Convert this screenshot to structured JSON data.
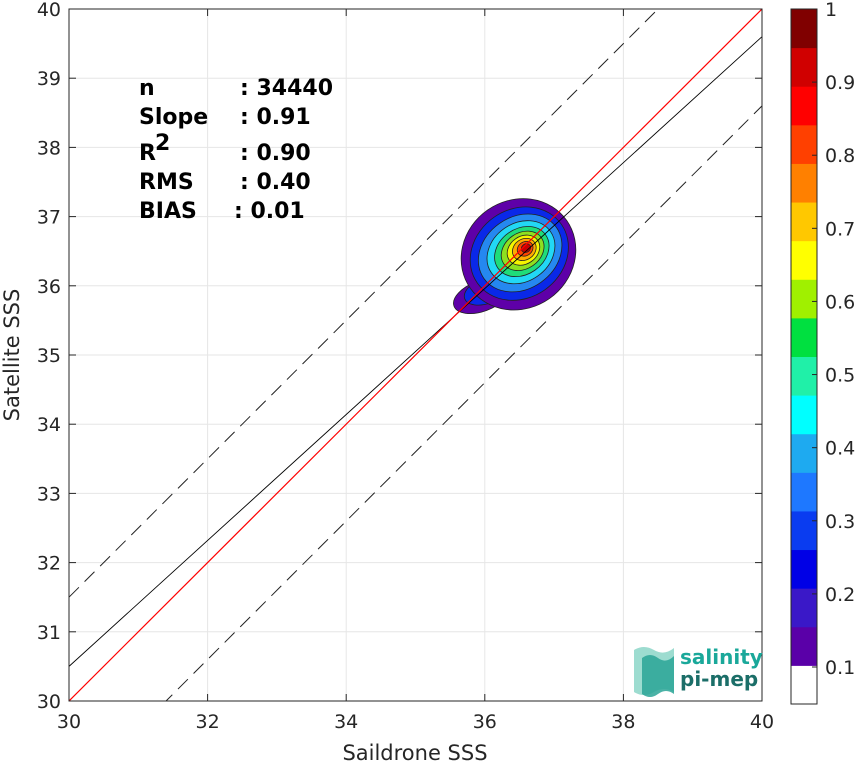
{
  "chart_data": {
    "type": "heatmap",
    "title": "",
    "xlabel": "Saildrone SSS",
    "ylabel": "Satellite SSS",
    "xlim": [
      30,
      40
    ],
    "ylim": [
      30,
      40
    ],
    "x_ticks": [
      "30",
      "32",
      "34",
      "36",
      "38",
      "40"
    ],
    "y_ticks": [
      "30",
      "31",
      "32",
      "33",
      "34",
      "35",
      "36",
      "37",
      "38",
      "39",
      "40"
    ],
    "grid": true,
    "stats": [
      {
        "label": "n",
        "value": ": 34440"
      },
      {
        "label": "Slope",
        "value": ": 0.91"
      },
      {
        "label": "R",
        "sup": "2",
        "value": ": 0.90"
      },
      {
        "label": "RMS",
        "value": ": 0.40"
      },
      {
        "label": "BIAS",
        "value": ": 0.01"
      }
    ],
    "reference_lines": {
      "identity": {
        "slope": 1,
        "intercept": 0,
        "color": "#ff0000"
      },
      "fit": {
        "slope": 0.91,
        "intercept": 3.2,
        "color": "#000000"
      },
      "upper_dashed": {
        "slope": 1,
        "intercept": 1.5
      },
      "lower_dashed": {
        "slope": 1,
        "intercept": -1.4
      }
    },
    "density_center": [
      36.6,
      36.55
    ],
    "density_levels": [
      {
        "level": 0.05,
        "color": "#5e00a8",
        "rx": 0.85,
        "ry": 0.78,
        "angle": -35
      },
      {
        "level": 0.15,
        "color": "#0a28e8",
        "rx": 0.74,
        "ry": 0.64,
        "angle": -35
      },
      {
        "level": 0.25,
        "color": "#2588f0",
        "rx": 0.64,
        "ry": 0.52,
        "angle": -35
      },
      {
        "level": 0.35,
        "color": "#22d8f5",
        "rx": 0.52,
        "ry": 0.42,
        "angle": -35
      },
      {
        "level": 0.45,
        "color": "#1fdc7a",
        "rx": 0.42,
        "ry": 0.33,
        "angle": -35
      },
      {
        "level": 0.55,
        "color": "#8ee020",
        "rx": 0.33,
        "ry": 0.26,
        "angle": -35
      },
      {
        "level": 0.65,
        "color": "#f5f500",
        "rx": 0.25,
        "ry": 0.2,
        "angle": -35
      },
      {
        "level": 0.75,
        "color": "#ffaa00",
        "rx": 0.18,
        "ry": 0.15,
        "angle": -35
      },
      {
        "level": 0.85,
        "color": "#ff4400",
        "rx": 0.12,
        "ry": 0.1,
        "angle": -35
      },
      {
        "level": 0.95,
        "color": "#c80000",
        "rx": 0.07,
        "ry": 0.06,
        "angle": -35
      }
    ],
    "colorbar": {
      "ticks": [
        "0.1",
        "0.2",
        "0.3",
        "0.4",
        "0.5",
        "0.6",
        "0.7",
        "0.8",
        "0.9",
        "1"
      ],
      "colors": [
        "#ffffff",
        "#5a00a8",
        "#3a18c8",
        "#0000e6",
        "#0a3cf0",
        "#1e78ff",
        "#1eaaf0",
        "#00ffff",
        "#20f0a8",
        "#00e040",
        "#a0f000",
        "#ffff00",
        "#ffc800",
        "#ff8000",
        "#ff4000",
        "#ff0000",
        "#d00000",
        "#800000"
      ]
    }
  },
  "logo": {
    "line1": "salinity",
    "line2": "pi-mep",
    "color": "#1aa89a"
  }
}
